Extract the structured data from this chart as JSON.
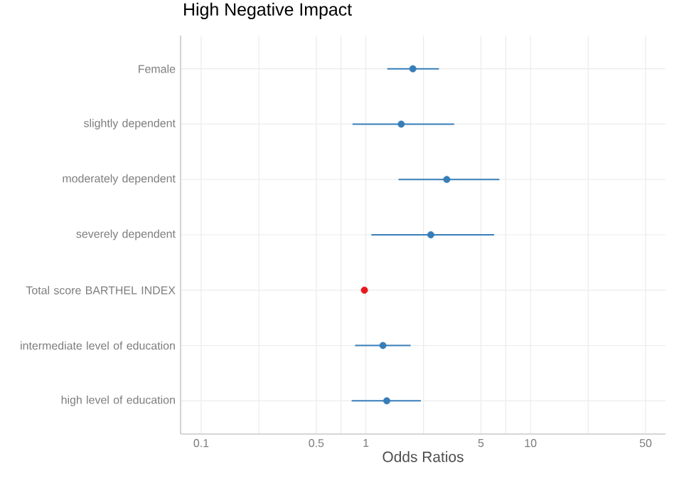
{
  "chart_data": {
    "type": "scatter",
    "orientation": "horizontal",
    "title": "High Negative Impact",
    "xlabel": "Odds Ratios",
    "categories": [
      "Female",
      "slightly dependent",
      "moderately dependent",
      "severely dependent",
      "Total score BARTHEL INDEX",
      "intermediate level of education",
      "high level of education"
    ],
    "values": [
      1.93,
      1.64,
      3.1,
      2.48,
      0.98,
      1.27,
      1.34
    ],
    "errors": [
      [
        1.35,
        2.78
      ],
      [
        0.83,
        3.44
      ],
      [
        1.58,
        6.47
      ],
      [
        1.08,
        6.01
      ],
      null,
      [
        0.86,
        1.87
      ],
      [
        0.82,
        2.16
      ]
    ],
    "colors": [
      "#377eb8",
      "#377eb8",
      "#377eb8",
      "#377eb8",
      "#e41a1c",
      "#377eb8",
      "#377eb8"
    ],
    "log": "x",
    "xlim": [
      0.075,
      66
    ],
    "xticks": [
      0.1,
      {
        "value": 0.224,
        "label": null
      },
      0.5,
      {
        "value": 0.707,
        "label": null
      },
      1,
      {
        "value": 2.24,
        "label": null
      },
      5,
      {
        "value": 7.07,
        "label": null
      },
      10,
      {
        "value": 22.4,
        "label": null
      },
      50
    ],
    "grid": true,
    "marker": "circle"
  }
}
